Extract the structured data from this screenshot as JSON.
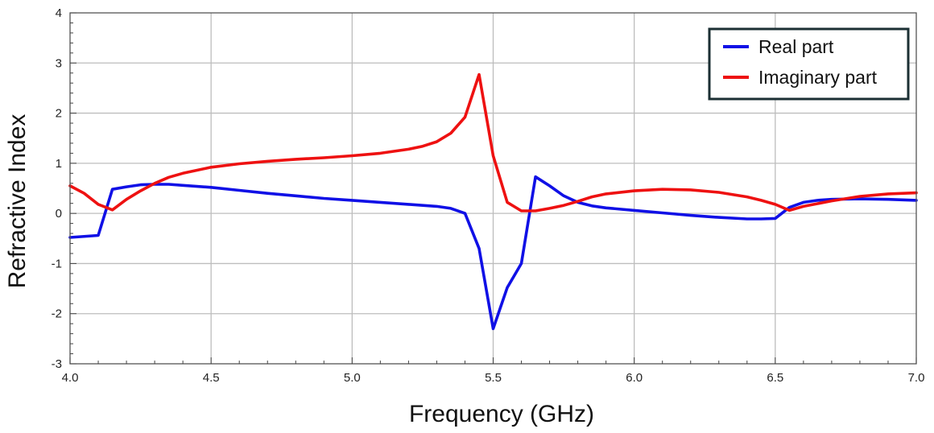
{
  "chart_data": {
    "type": "line",
    "title": "",
    "xlabel": "Frequency (GHz)",
    "ylabel": "Refractive Index",
    "xlim": [
      4.0,
      7.0
    ],
    "ylim": [
      -3,
      4
    ],
    "x_ticks": [
      "4.0",
      "4.5",
      "5.0",
      "5.5",
      "6.0",
      "6.5",
      "7.0"
    ],
    "y_ticks": [
      "-3",
      "-2",
      "-1",
      "0",
      "1",
      "2",
      "3",
      "4"
    ],
    "grid": true,
    "legend_position": "top-right",
    "series": [
      {
        "name": "Real part",
        "color": "#1010e6",
        "x": [
          4.0,
          4.1,
          4.15,
          4.2,
          4.25,
          4.3,
          4.35,
          4.4,
          4.5,
          4.6,
          4.7,
          4.8,
          4.9,
          5.0,
          5.1,
          5.2,
          5.3,
          5.35,
          5.4,
          5.45,
          5.5,
          5.55,
          5.6,
          5.65,
          5.7,
          5.75,
          5.8,
          5.85,
          5.9,
          6.0,
          6.1,
          6.2,
          6.3,
          6.4,
          6.45,
          6.5,
          6.55,
          6.6,
          6.65,
          6.7,
          6.8,
          6.9,
          7.0
        ],
        "y": [
          -0.48,
          -0.44,
          0.48,
          0.53,
          0.57,
          0.58,
          0.58,
          0.56,
          0.52,
          0.46,
          0.4,
          0.35,
          0.3,
          0.26,
          0.22,
          0.18,
          0.14,
          0.1,
          0.0,
          -0.7,
          -2.3,
          -1.48,
          -1.0,
          0.73,
          0.55,
          0.35,
          0.22,
          0.15,
          0.11,
          0.06,
          0.01,
          -0.04,
          -0.08,
          -0.11,
          -0.11,
          -0.1,
          0.12,
          0.22,
          0.26,
          0.28,
          0.29,
          0.28,
          0.26
        ]
      },
      {
        "name": "Imaginary part",
        "color": "#ee1111",
        "x": [
          4.0,
          4.05,
          4.1,
          4.15,
          4.2,
          4.25,
          4.3,
          4.35,
          4.4,
          4.5,
          4.6,
          4.7,
          4.8,
          4.9,
          5.0,
          5.1,
          5.2,
          5.25,
          5.3,
          5.35,
          5.4,
          5.45,
          5.5,
          5.55,
          5.6,
          5.65,
          5.7,
          5.75,
          5.8,
          5.85,
          5.9,
          6.0,
          6.1,
          6.2,
          6.3,
          6.4,
          6.45,
          6.5,
          6.55,
          6.6,
          6.7,
          6.8,
          6.9,
          7.0
        ],
        "y": [
          0.55,
          0.4,
          0.18,
          0.07,
          0.28,
          0.45,
          0.6,
          0.72,
          0.8,
          0.92,
          0.99,
          1.04,
          1.08,
          1.11,
          1.15,
          1.2,
          1.28,
          1.34,
          1.43,
          1.6,
          1.92,
          2.77,
          1.15,
          0.22,
          0.05,
          0.05,
          0.1,
          0.16,
          0.24,
          0.33,
          0.39,
          0.45,
          0.48,
          0.47,
          0.42,
          0.33,
          0.26,
          0.18,
          0.06,
          0.14,
          0.25,
          0.34,
          0.39,
          0.41
        ]
      }
    ]
  }
}
